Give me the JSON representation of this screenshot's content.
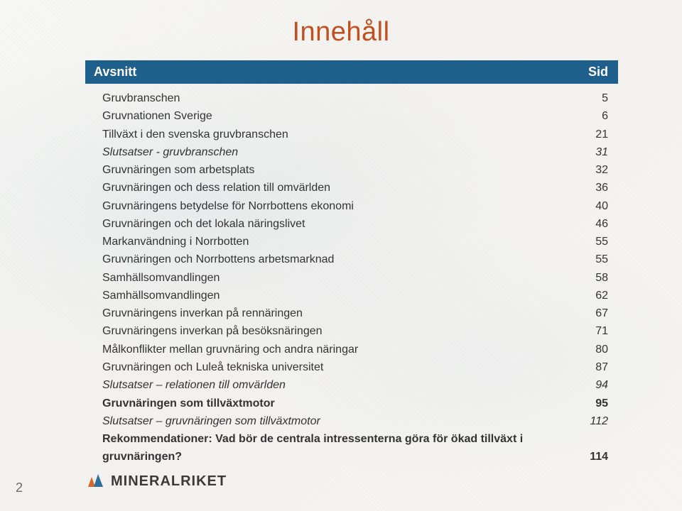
{
  "title": "Innehåll",
  "header": {
    "left": "Avsnitt",
    "right": "Sid"
  },
  "rows": [
    {
      "label": "Gruvbranschen",
      "page": "5",
      "style": "normal"
    },
    {
      "label": "Gruvnationen Sverige",
      "page": "6",
      "style": "normal"
    },
    {
      "label": "Tillväxt i den svenska gruvbranschen",
      "page": "21",
      "style": "normal"
    },
    {
      "label": "Slutsatser - gruvbranschen",
      "page": "31",
      "style": "italic"
    },
    {
      "label": "Gruvnäringen som arbetsplats",
      "page": "32",
      "style": "normal"
    },
    {
      "label": "Gruvnäringen och dess relation till omvärlden",
      "page": "36",
      "style": "normal"
    },
    {
      "label": "Gruvnäringens betydelse för Norrbottens ekonomi",
      "page": "40",
      "style": "normal"
    },
    {
      "label": "Gruvnäringen och det lokala näringslivet",
      "page": "46",
      "style": "normal"
    },
    {
      "label": "Markanvändning i Norrbotten",
      "page": "55",
      "style": "normal"
    },
    {
      "label": "Gruvnäringen och Norrbottens arbetsmarknad",
      "page": "55",
      "style": "normal"
    },
    {
      "label": "Samhällsomvandlingen",
      "page": "58",
      "style": "normal"
    },
    {
      "label": "Samhällsomvandlingen",
      "page": "62",
      "style": "normal"
    },
    {
      "label": "Gruvnäringens inverkan på rennäringen",
      "page": "67",
      "style": "normal"
    },
    {
      "label": "Gruvnäringens inverkan på besöksnäringen",
      "page": "71",
      "style": "normal"
    },
    {
      "label": "Målkonflikter mellan gruvnäring och andra näringar",
      "page": "80",
      "style": "normal"
    },
    {
      "label": "Gruvnäringen och Luleå tekniska universitet",
      "page": "87",
      "style": "normal"
    },
    {
      "label": "Slutsatser – relationen till omvärlden",
      "page": "94",
      "style": "italic"
    },
    {
      "label": "Gruvnäringen som tillväxtmotor",
      "page": "95",
      "style": "bold"
    },
    {
      "label": "Slutsatser – gruvnäringen som tillväxtmotor",
      "page": "112",
      "style": "italic"
    },
    {
      "label": "Rekommendationer: Vad bör de centrala intressenterna göra för ökad tillväxt i gruvnäringen?",
      "page": "114",
      "style": "bold"
    }
  ],
  "logo_text": "MINERALRIKET",
  "page_number": "2",
  "colors": {
    "title": "#c05020",
    "header_bg": "#1f5f8b",
    "header_fg": "#ffffff",
    "text": "#333333",
    "logo_text": "#3a3a38",
    "logo_orange": "#d36a2c",
    "logo_blue": "#2e6f9e"
  },
  "typography": {
    "title_fontsize": 38,
    "header_fontsize": 18,
    "row_fontsize": 16,
    "logo_fontsize": 20,
    "pagenum_fontsize": 18
  }
}
